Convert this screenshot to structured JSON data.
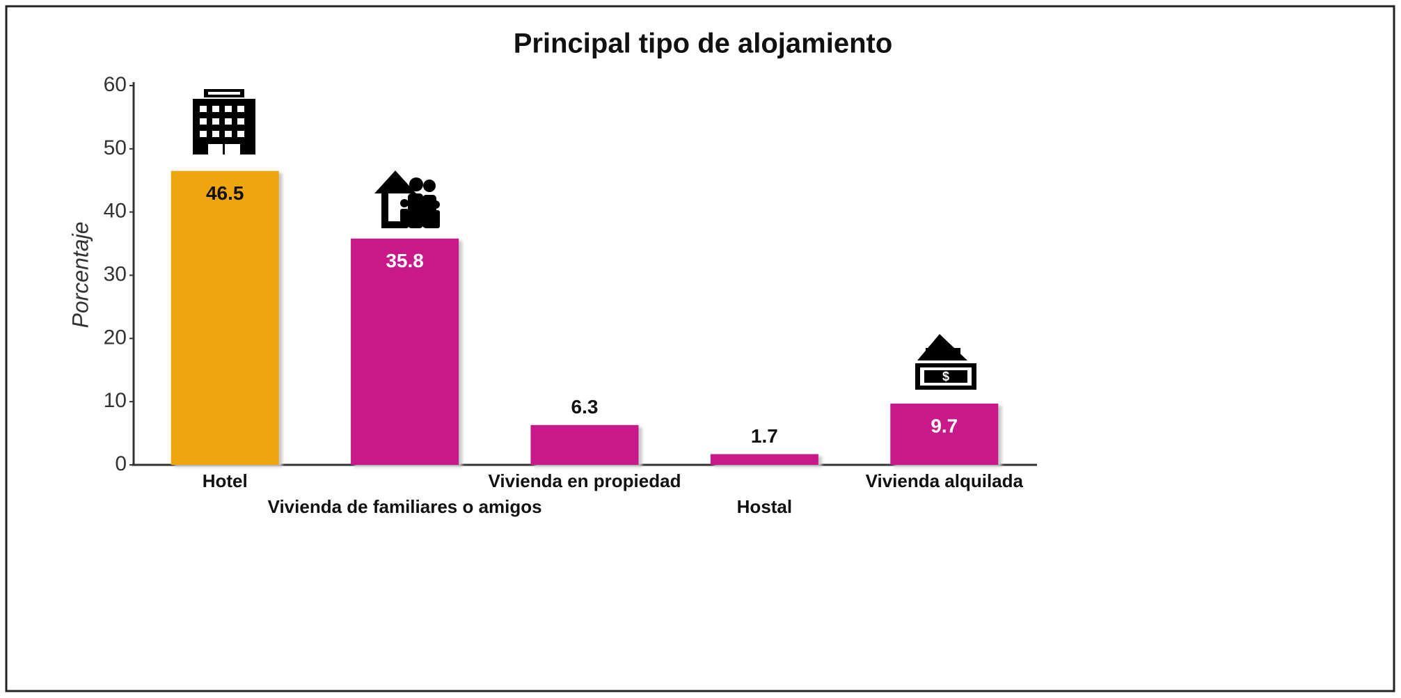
{
  "chart_data": {
    "type": "bar",
    "title": "Principal tipo de alojamiento",
    "y_label": "Porcentaje",
    "categories": [
      "Hotel",
      "Vivienda de familiares o amigos",
      "Vivienda en propiedad",
      "Hostal",
      "Vivienda alquilada"
    ],
    "values": [
      46.5,
      35.8,
      6.3,
      1.7,
      9.7
    ],
    "colors": [
      "#efa60e",
      "#c8198a",
      "#c8198a",
      "#c8198a",
      "#c8198a"
    ],
    "ylim": [
      0,
      60
    ],
    "yticks": [
      0,
      10,
      20,
      30,
      40,
      50,
      60
    ],
    "grid": false
  }
}
